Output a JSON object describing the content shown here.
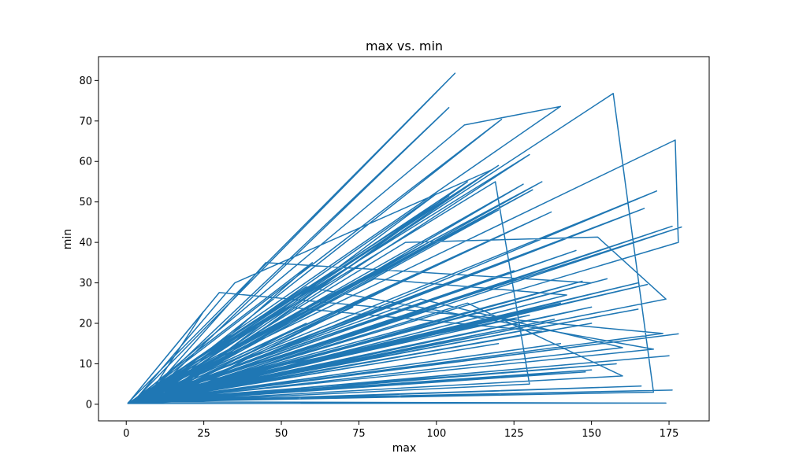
{
  "chart_data": {
    "type": "line",
    "title": "max vs. min",
    "xlabel": "max",
    "ylabel": "min",
    "xlim": [
      -8.95,
      187.95
    ],
    "ylim": [
      -4.1,
      85.9
    ],
    "xticks": [
      0,
      25,
      50,
      75,
      100,
      125,
      150,
      175
    ],
    "yticks": [
      0,
      10,
      20,
      30,
      40,
      50,
      60,
      70,
      80
    ],
    "grid": false,
    "legend": "none",
    "colors": {
      "line": "#1f77b4"
    },
    "series": [
      {
        "x": [
          0.5,
          106,
          2,
          109,
          140,
          3,
          121,
          5,
          157,
          170,
          8,
          130,
          1,
          177,
          178,
          6,
          104,
          4,
          120,
          2,
          96,
          7,
          137,
          3,
          171,
          10,
          60,
          1,
          147,
          9,
          150,
          4,
          100,
          12,
          179,
          2,
          119,
          130,
          0.5,
          30,
          173,
          5,
          45,
          150,
          3,
          131,
          7,
          167,
          1,
          104,
          6,
          90,
          152,
          174,
          11,
          140,
          2,
          35,
          118,
          9,
          128,
          4,
          145,
          0.5,
          165,
          14,
          110,
          3,
          80,
          142,
          8,
          120,
          1,
          155,
          5,
          176,
          10,
          128,
          2,
          95,
          160,
          6,
          134,
          0.5,
          52,
          134,
          13,
          144,
          3,
          110,
          9,
          168,
          1,
          125,
          7,
          150,
          2,
          88,
          15,
          138,
          4,
          175,
          0.5,
          58,
          170,
          11,
          140,
          5,
          118,
          1,
          165,
          3,
          100,
          8,
          140,
          2,
          178,
          12,
          158,
          0.5,
          25,
          6,
          110,
          160,
          3,
          73,
          9,
          150,
          1,
          130,
          20,
          58,
          4,
          166,
          0.5,
          100,
          10,
          148,
          2,
          120,
          7,
          176,
          5,
          174,
          1
        ],
        "y": [
          0.3,
          81.8,
          0.5,
          69,
          73.6,
          1,
          70.4,
          0.4,
          76.8,
          3,
          0.6,
          61.7,
          0.3,
          65.3,
          40,
          0.8,
          73.3,
          0.5,
          59,
          0.3,
          39.3,
          0.9,
          47.5,
          0.4,
          52.7,
          1.2,
          35,
          0.3,
          30.4,
          1.1,
          24,
          0.5,
          52,
          1.5,
          43.8,
          0.3,
          55,
          5,
          0.2,
          27.6,
          17.5,
          0.6,
          35,
          30,
          0.4,
          53,
          1,
          48.4,
          0.3,
          51.5,
          0.7,
          40,
          41.3,
          26,
          1.3,
          25,
          0.3,
          30,
          58,
          1,
          54.4,
          0.5,
          38,
          0.2,
          30,
          2,
          55,
          0.4,
          31,
          27,
          1,
          48,
          0.3,
          31,
          0.6,
          44,
          1.2,
          19,
          0.3,
          26,
          14,
          0.7,
          55,
          0.2,
          24,
          18,
          1.5,
          23,
          0.4,
          27,
          1,
          29.6,
          0.3,
          33,
          0.9,
          8.5,
          0.3,
          30,
          2,
          21,
          0.5,
          12,
          0.2,
          29,
          13.6,
          1.3,
          15,
          0.6,
          34,
          0.3,
          23.5,
          0.4,
          24,
          1,
          28,
          0.3,
          17.4,
          1.4,
          10,
          0.2,
          23,
          0.7,
          25,
          7,
          0.4,
          24,
          1.1,
          20,
          0.3,
          22,
          5,
          20,
          0.5,
          4.5,
          0.2,
          18,
          1.2,
          8,
          0.3,
          15,
          0.8,
          3.5,
          0.6,
          0.3,
          0.2
        ]
      }
    ]
  }
}
